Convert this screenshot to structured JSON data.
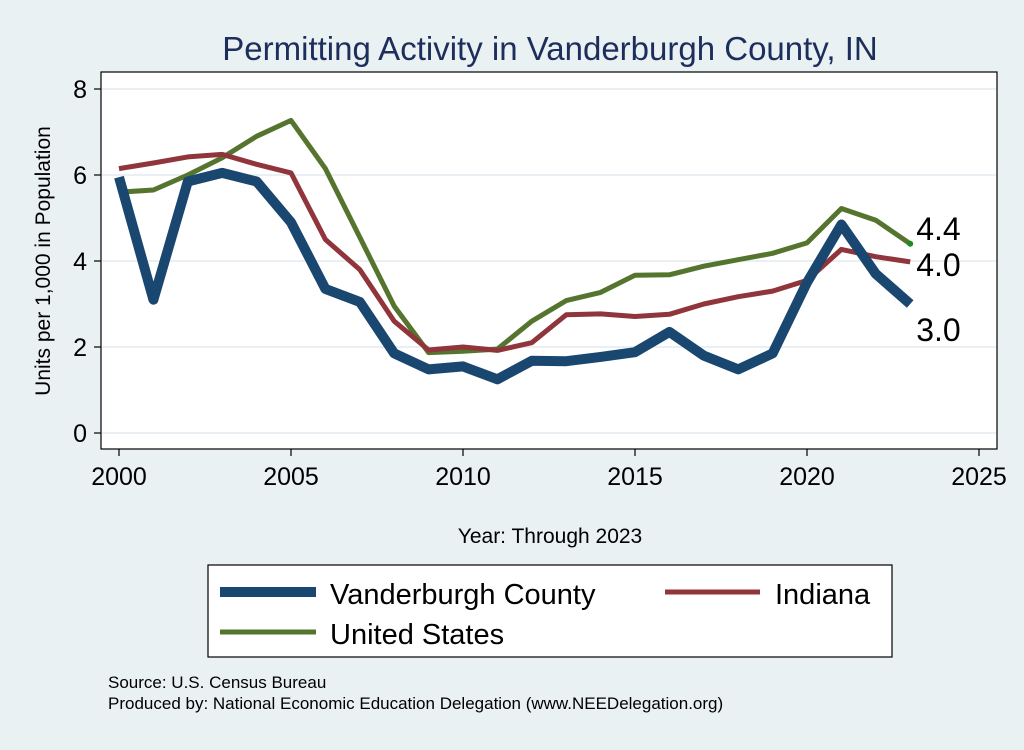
{
  "chart_data": {
    "type": "line",
    "title": "Permitting Activity in Vanderburgh County, IN",
    "xlabel": "Year: Through 2023",
    "ylabel": "Units per 1,000 in Population",
    "xlim": [
      2000,
      2025
    ],
    "ylim": [
      0,
      8
    ],
    "xticks": [
      2000,
      2005,
      2010,
      2015,
      2020,
      2025
    ],
    "yticks": [
      0,
      2,
      4,
      6,
      8
    ],
    "grid": true,
    "legend_position": "bottom",
    "x": [
      2000,
      2001,
      2002,
      2003,
      2004,
      2005,
      2006,
      2007,
      2008,
      2009,
      2010,
      2011,
      2012,
      2013,
      2014,
      2015,
      2016,
      2017,
      2018,
      2019,
      2020,
      2021,
      2022,
      2023
    ],
    "series": [
      {
        "name": "Vanderburgh County",
        "color": "#1a476f",
        "values": [
          5.95,
          3.1,
          5.85,
          6.05,
          5.85,
          4.9,
          3.35,
          3.05,
          1.85,
          1.48,
          1.55,
          1.25,
          1.68,
          1.67,
          1.77,
          1.88,
          2.35,
          1.8,
          1.48,
          1.85,
          3.5,
          4.85,
          3.7,
          3.0
        ],
        "end_label": "3.0"
      },
      {
        "name": "Indiana",
        "color": "#90353b",
        "values": [
          6.15,
          6.28,
          6.42,
          6.48,
          6.25,
          6.05,
          4.5,
          3.8,
          2.6,
          1.93,
          2.0,
          1.92,
          2.1,
          2.75,
          2.77,
          2.71,
          2.76,
          3.0,
          3.17,
          3.3,
          3.55,
          4.27,
          4.1,
          3.98
        ],
        "end_label": "4.0"
      },
      {
        "name": "United States",
        "color": "#55752f",
        "values": [
          5.6,
          5.65,
          6.0,
          6.4,
          6.9,
          7.27,
          6.15,
          4.55,
          2.95,
          1.87,
          1.9,
          1.95,
          2.6,
          3.08,
          3.27,
          3.67,
          3.68,
          3.88,
          4.03,
          4.18,
          4.42,
          5.22,
          4.95,
          4.4
        ],
        "end_label": "4.4"
      }
    ]
  },
  "legend": {
    "items": [
      "Vanderburgh County",
      "Indiana",
      "United States"
    ]
  },
  "footer": {
    "source": "Source: U.S. Census Bureau",
    "produced_by": "Produced by: National Economic Education Delegation (www.NEEDelegation.org)"
  }
}
